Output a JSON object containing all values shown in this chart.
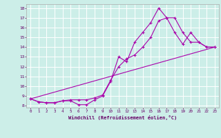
{
  "xlabel": "Windchill (Refroidissement éolien,°C)",
  "bg_color": "#cceee8",
  "grid_color": "#ffffff",
  "line_color": "#aa00aa",
  "xlim": [
    -0.5,
    23.5
  ],
  "ylim": [
    7.8,
    18.4
  ],
  "yticks": [
    8,
    9,
    10,
    11,
    12,
    13,
    14,
    15,
    16,
    17,
    18
  ],
  "xticks": [
    0,
    1,
    2,
    3,
    4,
    5,
    6,
    7,
    8,
    9,
    10,
    11,
    12,
    13,
    14,
    15,
    16,
    17,
    18,
    19,
    20,
    21,
    22,
    23
  ],
  "line1_x": [
    0,
    1,
    2,
    3,
    4,
    5,
    6,
    7,
    8,
    9,
    10,
    11,
    12,
    13,
    14,
    15,
    16,
    17,
    18,
    19,
    20,
    21,
    22,
    23
  ],
  "line1_y": [
    8.7,
    8.4,
    8.3,
    8.3,
    8.5,
    8.5,
    8.1,
    8.1,
    8.6,
    9.0,
    10.5,
    13.0,
    12.5,
    14.5,
    15.5,
    16.5,
    18.0,
    17.0,
    17.0,
    15.5,
    14.5,
    14.5,
    14.0,
    14.0
  ],
  "line2_x": [
    0,
    1,
    2,
    3,
    4,
    5,
    6,
    7,
    8,
    9,
    10,
    11,
    12,
    13,
    14,
    15,
    16,
    17,
    18,
    19,
    20,
    21,
    22,
    23
  ],
  "line2_y": [
    8.7,
    8.4,
    8.3,
    8.3,
    8.5,
    8.6,
    8.6,
    8.6,
    8.8,
    9.1,
    10.6,
    12.0,
    12.8,
    13.2,
    14.0,
    15.0,
    16.7,
    17.0,
    15.5,
    14.3,
    15.5,
    14.5,
    14.0,
    14.0
  ],
  "line3_x": [
    0,
    23
  ],
  "line3_y": [
    8.7,
    14.0
  ]
}
